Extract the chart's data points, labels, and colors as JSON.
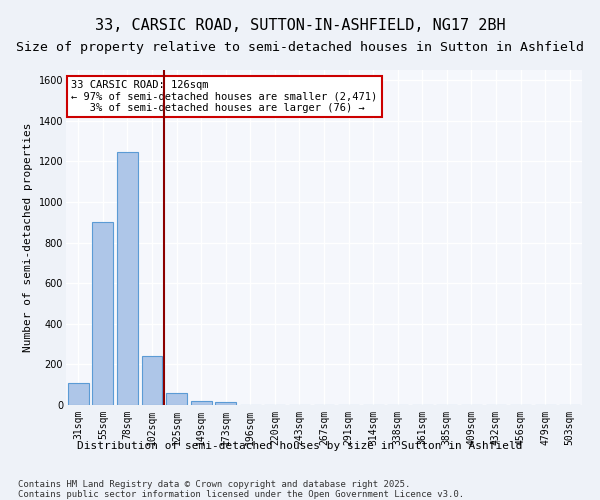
{
  "title1": "33, CARSIC ROAD, SUTTON-IN-ASHFIELD, NG17 2BH",
  "title2": "Size of property relative to semi-detached houses in Sutton in Ashfield",
  "xlabel": "Distribution of semi-detached houses by size in Sutton in Ashfield",
  "ylabel": "Number of semi-detached properties",
  "categories": [
    "31sqm",
    "55sqm",
    "78sqm",
    "102sqm",
    "125sqm",
    "149sqm",
    "173sqm",
    "196sqm",
    "220sqm",
    "243sqm",
    "267sqm",
    "291sqm",
    "314sqm",
    "338sqm",
    "361sqm",
    "385sqm",
    "409sqm",
    "432sqm",
    "456sqm",
    "479sqm",
    "503sqm"
  ],
  "values": [
    107,
    900,
    1245,
    240,
    58,
    18,
    13,
    0,
    0,
    0,
    0,
    0,
    0,
    0,
    0,
    0,
    0,
    0,
    0,
    0,
    0
  ],
  "bar_color": "#aec6e8",
  "bar_edge_color": "#5b9bd5",
  "marker_line_color": "#8B0000",
  "annotation_text": "33 CARSIC ROAD: 126sqm\n← 97% of semi-detached houses are smaller (2,471)\n   3% of semi-detached houses are larger (76) →",
  "annotation_box_color": "#ffffff",
  "annotation_box_edge": "#cc0000",
  "ylim": [
    0,
    1650
  ],
  "yticks": [
    0,
    200,
    400,
    600,
    800,
    1000,
    1200,
    1400,
    1600
  ],
  "bg_color": "#eef2f8",
  "plot_bg_color": "#f5f7fc",
  "grid_color": "#ffffff",
  "footer": "Contains HM Land Registry data © Crown copyright and database right 2025.\nContains public sector information licensed under the Open Government Licence v3.0.",
  "title_fontsize": 11,
  "subtitle_fontsize": 9.5,
  "axis_label_fontsize": 8,
  "tick_fontsize": 7,
  "annotation_fontsize": 7.5,
  "footer_fontsize": 6.5
}
